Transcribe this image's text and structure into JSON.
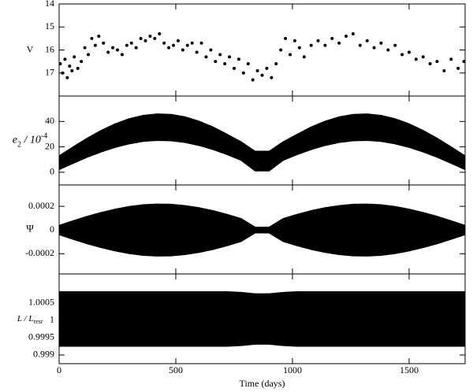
{
  "chart_data": [
    {
      "type": "scatter",
      "ylabel": [
        "V"
      ],
      "color": "#000000",
      "xlim": [
        0,
        1740
      ],
      "xticks": [
        0,
        500,
        1000,
        1500
      ],
      "ylim": [
        18,
        14
      ],
      "yticks": [
        14,
        15,
        16,
        17
      ],
      "x": [
        5,
        15,
        25,
        35,
        45,
        55,
        65,
        80,
        95,
        110,
        125,
        140,
        155,
        170,
        190,
        210,
        230,
        250,
        270,
        290,
        310,
        330,
        350,
        370,
        390,
        410,
        430,
        450,
        470,
        490,
        510,
        530,
        550,
        570,
        590,
        610,
        630,
        650,
        670,
        690,
        710,
        730,
        750,
        770,
        790,
        810,
        830,
        850,
        870,
        890,
        910,
        930,
        950,
        970,
        990,
        1010,
        1030,
        1050,
        1080,
        1110,
        1140,
        1170,
        1200,
        1230,
        1260,
        1290,
        1320,
        1350,
        1380,
        1410,
        1440,
        1470,
        1500,
        1530,
        1560,
        1590,
        1620,
        1650,
        1680,
        1710,
        1735
      ],
      "values": [
        16.6,
        17.0,
        16.4,
        17.2,
        16.7,
        16.9,
        16.3,
        16.8,
        16.5,
        15.9,
        16.2,
        15.5,
        15.8,
        15.4,
        15.7,
        16.1,
        15.9,
        16.0,
        16.2,
        15.8,
        15.7,
        15.9,
        15.5,
        15.6,
        15.4,
        15.5,
        15.3,
        15.7,
        15.9,
        15.8,
        15.6,
        16.0,
        15.8,
        15.7,
        16.1,
        15.7,
        16.3,
        16.0,
        16.5,
        16.2,
        16.6,
        16.3,
        16.8,
        16.4,
        17.0,
        16.6,
        17.3,
        16.9,
        17.1,
        16.8,
        17.2,
        16.6,
        16.0,
        15.5,
        16.2,
        15.6,
        15.9,
        16.3,
        15.8,
        15.6,
        15.8,
        15.5,
        15.7,
        15.4,
        15.3,
        15.8,
        15.6,
        15.9,
        15.7,
        16.0,
        15.8,
        16.2,
        16.1,
        16.4,
        16.3,
        16.6,
        16.5,
        16.9,
        16.4,
        16.8,
        16.5
      ]
    },
    {
      "type": "band",
      "ylabel": [
        "e",
        "2",
        " / 10",
        "-4"
      ],
      "color": "#000000",
      "xlim": [
        0,
        1740
      ],
      "xticks": [
        0,
        500,
        1000,
        1500
      ],
      "ylim": [
        -10,
        60
      ],
      "yticks": [
        0,
        20,
        40
      ],
      "x": [
        0,
        60,
        120,
        180,
        240,
        300,
        360,
        420,
        480,
        540,
        600,
        660,
        720,
        780,
        840,
        900,
        960,
        1020,
        1080,
        1140,
        1200,
        1260,
        1320,
        1380,
        1440,
        1500,
        1560,
        1620,
        1680,
        1740
      ],
      "series": [
        {
          "values": [
            13,
            20.1,
            26.9,
            33,
            38.2,
            42.2,
            44.8,
            46,
            45.6,
            43.7,
            40.3,
            35.7,
            30,
            24,
            16.6,
            16.6,
            24,
            30,
            35.7,
            40.3,
            43.7,
            45.6,
            46,
            44.8,
            42.2,
            38.2,
            33,
            26.9,
            20.1,
            13
          ]
        },
        {
          "values": [
            2,
            6.9,
            11.7,
            15.9,
            19.5,
            22.3,
            24.2,
            25,
            24.7,
            23.4,
            21,
            17.8,
            13.8,
            9.3,
            1,
            1,
            9.3,
            13.8,
            17.8,
            21,
            23.4,
            24.7,
            25,
            24.2,
            22.3,
            19.5,
            15.9,
            11.7,
            6.9,
            2
          ]
        }
      ]
    },
    {
      "type": "band",
      "ylabel": [
        "Ψ"
      ],
      "color": "#000000",
      "xlim": [
        0,
        1740
      ],
      "xticks": [
        0,
        500,
        1000,
        1500
      ],
      "ylim": [
        -0.00037,
        0.00038
      ],
      "yticks": [
        0.0002,
        0,
        -0.0002
      ],
      "x": [
        0,
        60,
        120,
        180,
        240,
        300,
        360,
        420,
        480,
        540,
        600,
        660,
        720,
        780,
        840,
        900,
        960,
        1020,
        1080,
        1140,
        1200,
        1260,
        1320,
        1380,
        1440,
        1500,
        1560,
        1620,
        1680,
        1740
      ],
      "series": [
        {
          "values": [
            4e-05,
            7.9e-05,
            0.000116,
            0.000149,
            0.000177,
            0.000199,
            0.000214,
            0.00022,
            0.000218,
            0.000207,
            0.000189,
            0.000164,
            0.000133,
            9.7e-05,
            2.5e-05,
            2.5e-05,
            9.7e-05,
            0.000133,
            0.000164,
            0.000189,
            0.000207,
            0.000218,
            0.00022,
            0.000214,
            0.000199,
            0.000177,
            0.000149,
            0.000116,
            7.9e-05,
            4e-05
          ]
        },
        {
          "values": [
            -4e-05,
            -7.9e-05,
            -0.000116,
            -0.000149,
            -0.000177,
            -0.000199,
            -0.000214,
            -0.00022,
            -0.000218,
            -0.000207,
            -0.000189,
            -0.000164,
            -0.000133,
            -9.7e-05,
            -2.5e-05,
            -2.5e-05,
            -9.7e-05,
            -0.000133,
            -0.000164,
            -0.000189,
            -0.000207,
            -0.000218,
            -0.00022,
            -0.000214,
            -0.000199,
            -0.000177,
            -0.000149,
            -0.000116,
            -7.9e-05,
            -4e-05
          ]
        }
      ]
    },
    {
      "type": "band",
      "ylabel": [
        "L / L",
        "rest"
      ],
      "xlabel": "Time (days)",
      "color": "#000000",
      "xlim": [
        0,
        1740
      ],
      "xticks": [
        0,
        500,
        1000,
        1500
      ],
      "ylim": [
        0.99875,
        1.00134
      ],
      "yticks": [
        0.999,
        0.9995,
        1,
        1.0005
      ],
      "x": [
        0,
        60,
        120,
        180,
        240,
        300,
        360,
        420,
        480,
        540,
        600,
        660,
        720,
        780,
        840,
        900,
        960,
        1020,
        1080,
        1140,
        1200,
        1260,
        1320,
        1380,
        1440,
        1500,
        1560,
        1620,
        1680,
        1740
      ],
      "series": [
        {
          "values": [
            1.00083,
            1.00083,
            1.00083,
            1.00083,
            1.00083,
            1.00083,
            1.00083,
            1.00083,
            1.00083,
            1.00083,
            1.00083,
            1.00083,
            1.00083,
            1.00081,
            1.00077,
            1.00077,
            1.00081,
            1.00083,
            1.00083,
            1.00083,
            1.00083,
            1.00083,
            1.00083,
            1.00083,
            1.00083,
            1.00083,
            1.00083,
            1.00083,
            1.00083,
            1.00083
          ]
        },
        {
          "values": [
            0.99925,
            0.99925,
            0.99925,
            0.99925,
            0.99925,
            0.99925,
            0.99925,
            0.99925,
            0.99925,
            0.99925,
            0.99925,
            0.99925,
            0.99925,
            0.99927,
            0.99931,
            0.99931,
            0.99927,
            0.99925,
            0.99925,
            0.99925,
            0.99925,
            0.99925,
            0.99925,
            0.99925,
            0.99925,
            0.99925,
            0.99925,
            0.99925,
            0.99925,
            0.99925
          ]
        }
      ]
    }
  ]
}
